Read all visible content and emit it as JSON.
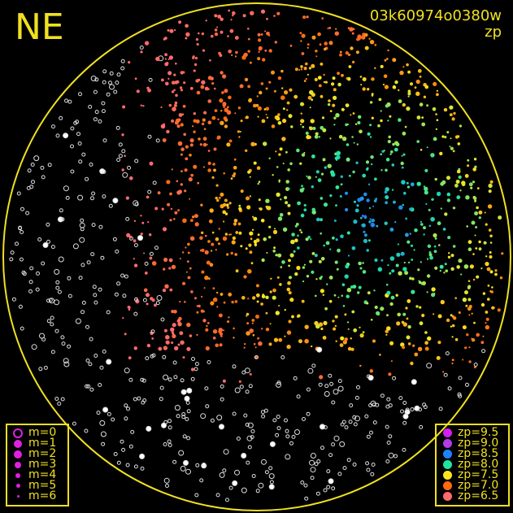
{
  "header": {
    "direction": "NE",
    "image_id": "03k60974o0380w",
    "quantity": "zp"
  },
  "chart_data": {
    "type": "scatter",
    "title": "03k60974o0380w",
    "color_variable": "zp",
    "grid": false,
    "magnitude_legend": {
      "position": "bottom-left",
      "entries": [
        "m=0",
        "m=1",
        "m=2",
        "m=3",
        "m=4",
        "m=5",
        "m=6"
      ]
    },
    "zp_legend": {
      "position": "bottom-right",
      "entries": [
        {
          "label": "zp=9.5",
          "value": 9.5,
          "color": "#d21ef0"
        },
        {
          "label": "zp=9.0",
          "value": 9.0,
          "color": "#b43ce6"
        },
        {
          "label": "zp=8.5",
          "value": 8.5,
          "color": "#1e82ff"
        },
        {
          "label": "zp=8.0",
          "value": 8.0,
          "color": "#1ee6a0"
        },
        {
          "label": "zp=7.5",
          "value": 7.5,
          "color": "#ffe61e"
        },
        {
          "label": "zp=7.0",
          "value": 7.0,
          "color": "#ff6a10"
        },
        {
          "label": "zp=6.5",
          "value": 6.5,
          "color": "#ff6a6e"
        }
      ]
    },
    "unmatched_color": "#ffffff",
    "horizon_color": "#f0e020"
  }
}
